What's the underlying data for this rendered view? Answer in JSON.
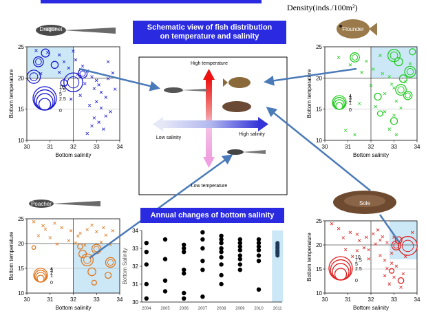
{
  "header": {
    "density_label": "Density(inds./100m²)"
  },
  "banners": {
    "schematic_line1": "Schematic view of fish distribution",
    "schematic_line2": "on temperature and salinity",
    "annual": "Annual changes of bottom salinity"
  },
  "schematic": {
    "high_temperature": "High temperature",
    "low_temperature": "Low temperature",
    "low_salinity": "Low salinity",
    "high_salinity": "High salinity"
  },
  "species": {
    "dragonet": "Dragonet",
    "flounder": "Flounder",
    "poacher": "Poacher",
    "sole": "Sole"
  },
  "colors": {
    "dragonet": "#1a1ad0",
    "flounder": "#22cc22",
    "poacher": "#e07820",
    "sole": "#e02020",
    "highlight": "#cce8f6",
    "arrow": "#4a7ab8"
  },
  "chart_data": [
    {
      "type": "scatter",
      "name": "Dragonet",
      "xlabel": "Bottom salinity",
      "ylabel": "Bottom temperature",
      "xlim": [
        30,
        34
      ],
      "ylim": [
        10,
        25
      ],
      "xticks": [
        "30",
        "31",
        "32",
        "33",
        "34"
      ],
      "yticks": [
        "10",
        "15",
        "20",
        "25"
      ],
      "legend_values": [
        "10",
        "7.5",
        "5",
        "2.5",
        "0"
      ],
      "highlight": {
        "x": [
          30,
          32
        ],
        "y": [
          20,
          25
        ]
      },
      "circles": [
        {
          "x": 32.0,
          "y": 19.3,
          "v": 6.5
        },
        {
          "x": 30.3,
          "y": 20.2,
          "v": 3.2
        },
        {
          "x": 30.5,
          "y": 22.6,
          "v": 1.8
        },
        {
          "x": 30.8,
          "y": 24.0,
          "v": 1.2
        },
        {
          "x": 32.4,
          "y": 20.7,
          "v": 1.5
        },
        {
          "x": 31.6,
          "y": 19.2,
          "v": 0.8
        },
        {
          "x": 31.2,
          "y": 22.1,
          "v": 0.9
        }
      ],
      "crosses": [
        [
          30.4,
          24.4
        ],
        [
          30.9,
          24.1
        ],
        [
          31.4,
          23.7
        ],
        [
          31.6,
          22.6
        ],
        [
          32.1,
          22.9
        ],
        [
          32.4,
          21.9
        ],
        [
          32.6,
          21.1
        ],
        [
          32.2,
          20.6
        ],
        [
          32.8,
          20.2
        ],
        [
          33.0,
          19.6
        ],
        [
          32.5,
          19.1
        ],
        [
          33.1,
          18.9
        ],
        [
          32.9,
          18.3
        ],
        [
          33.2,
          17.7
        ],
        [
          33.4,
          16.9
        ],
        [
          33.0,
          16.2
        ],
        [
          32.7,
          15.6
        ],
        [
          33.2,
          15.2
        ],
        [
          33.6,
          14.6
        ],
        [
          33.4,
          13.9
        ],
        [
          32.9,
          13.6
        ],
        [
          33.1,
          12.9
        ],
        [
          32.8,
          12.3
        ],
        [
          33.3,
          11.8
        ],
        [
          32.6,
          11.1
        ],
        [
          31.9,
          16.6
        ],
        [
          32.3,
          17.2
        ],
        [
          33.5,
          19.9
        ],
        [
          33.7,
          20.8
        ],
        [
          31.4,
          20.9
        ],
        [
          31.8,
          21.6
        ],
        [
          30.6,
          20.7
        ],
        [
          33.8,
          18.2
        ],
        [
          32.0,
          24.3
        ],
        [
          33.5,
          22.6
        ]
      ]
    },
    {
      "type": "scatter",
      "name": "Flounder",
      "xlabel": "Bottom salinity",
      "ylabel": "Bottom temperature",
      "xlim": [
        30,
        34
      ],
      "ylim": [
        10,
        25
      ],
      "xticks": [
        "30",
        "31",
        "32",
        "33",
        "34"
      ],
      "yticks": [
        "10",
        "15",
        "20",
        "25"
      ],
      "legend_values": [
        "4",
        "3",
        "2",
        "1",
        "0"
      ],
      "highlight": {
        "x": [
          32,
          34
        ],
        "y": [
          20,
          25
        ]
      },
      "circles": [
        {
          "x": 33.0,
          "y": 23.6,
          "v": 3.2
        },
        {
          "x": 31.3,
          "y": 23.3,
          "v": 1.8
        },
        {
          "x": 33.2,
          "y": 22.6,
          "v": 1.4
        },
        {
          "x": 33.7,
          "y": 21.0,
          "v": 2.5
        },
        {
          "x": 33.4,
          "y": 19.9,
          "v": 1.2
        },
        {
          "x": 33.3,
          "y": 18.1,
          "v": 2.4
        },
        {
          "x": 33.6,
          "y": 17.2,
          "v": 1.5
        },
        {
          "x": 32.3,
          "y": 17.0,
          "v": 1.0
        },
        {
          "x": 33.0,
          "y": 13.1,
          "v": 1.0
        },
        {
          "x": 32.4,
          "y": 14.3,
          "v": 0.6
        },
        {
          "x": 33.8,
          "y": 24.2,
          "v": 0.8
        }
      ],
      "crosses": [
        [
          30.6,
          23.3
        ],
        [
          31.1,
          22.1
        ],
        [
          31.6,
          20.9
        ],
        [
          32.1,
          21.4
        ],
        [
          32.5,
          20.7
        ],
        [
          32.8,
          20.2
        ],
        [
          32.9,
          19.0
        ],
        [
          33.0,
          18.4
        ],
        [
          32.6,
          17.5
        ],
        [
          33.1,
          16.3
        ],
        [
          32.2,
          15.4
        ],
        [
          32.6,
          14.6
        ],
        [
          33.3,
          15.2
        ],
        [
          33.0,
          14.0
        ],
        [
          32.8,
          11.8
        ],
        [
          33.1,
          10.9
        ],
        [
          31.3,
          10.9
        ],
        [
          30.9,
          11.6
        ],
        [
          32.0,
          18.8
        ],
        [
          31.8,
          22.7
        ],
        [
          32.4,
          23.6
        ],
        [
          33.5,
          19.4
        ],
        [
          31.5,
          15.9
        ],
        [
          33.7,
          22.3
        ]
      ]
    },
    {
      "type": "scatter",
      "name": "Poacher",
      "xlabel": "Bottom salinity",
      "ylabel": "Bottom temperature",
      "xlim": [
        30,
        34
      ],
      "ylim": [
        10,
        25
      ],
      "xticks": [
        "30",
        "31",
        "32",
        "33",
        "34"
      ],
      "yticks": [
        "10",
        "15",
        "20",
        "25"
      ],
      "legend_values": [
        "4",
        "3",
        "2",
        "1",
        "0"
      ],
      "highlight": {
        "x": [
          32,
          34
        ],
        "y": [
          10,
          20
        ]
      },
      "circles": [
        {
          "x": 32.6,
          "y": 16.7,
          "v": 3.0
        },
        {
          "x": 32.4,
          "y": 17.9,
          "v": 1.2
        },
        {
          "x": 33.0,
          "y": 18.9,
          "v": 1.8
        },
        {
          "x": 33.6,
          "y": 16.2,
          "v": 2.0
        },
        {
          "x": 32.8,
          "y": 14.3,
          "v": 1.3
        },
        {
          "x": 32.3,
          "y": 19.4,
          "v": 0.6
        },
        {
          "x": 33.5,
          "y": 13.6,
          "v": 0.8
        },
        {
          "x": 32.9,
          "y": 12.1,
          "v": 0.5
        },
        {
          "x": 30.3,
          "y": 19.2,
          "v": 0.3
        }
      ],
      "crosses": [
        [
          30.3,
          24.4
        ],
        [
          30.7,
          23.6
        ],
        [
          31.2,
          24.1
        ],
        [
          31.5,
          23.2
        ],
        [
          31.9,
          22.6
        ],
        [
          32.3,
          22.1
        ],
        [
          32.6,
          22.8
        ],
        [
          33.0,
          22.4
        ],
        [
          33.4,
          21.7
        ],
        [
          33.7,
          22.6
        ],
        [
          31.0,
          21.2
        ],
        [
          30.5,
          21.6
        ],
        [
          31.8,
          20.6
        ],
        [
          32.1,
          20.1
        ],
        [
          32.5,
          19.7
        ],
        [
          33.2,
          20.3
        ],
        [
          33.6,
          19.8
        ],
        [
          32.2,
          21.5
        ],
        [
          32.8,
          23.7
        ],
        [
          33.3,
          23.2
        ],
        [
          31.3,
          19.9
        ],
        [
          30.8,
          22.9
        ]
      ]
    },
    {
      "type": "scatter",
      "name": "Sole",
      "xlabel": "Bottom salinity",
      "ylabel": "Bottom temperature",
      "xlim": [
        30,
        34
      ],
      "ylim": [
        10,
        25
      ],
      "xticks": [
        "30",
        "31",
        "32",
        "33",
        "34"
      ],
      "yticks": [
        "10",
        "15",
        "20",
        "25"
      ],
      "legend_values": [
        "10",
        "7.5",
        "5",
        "2.5",
        "0"
      ],
      "highlight": {
        "x": [
          32.8,
          34
        ],
        "y": [
          17,
          25
        ]
      },
      "circles": [
        {
          "x": 33.6,
          "y": 19.8,
          "v": 6.5
        },
        {
          "x": 33.1,
          "y": 19.9,
          "v": 1.5
        },
        {
          "x": 33.2,
          "y": 21.0,
          "v": 0.8
        },
        {
          "x": 33.3,
          "y": 12.6,
          "v": 0.6
        },
        {
          "x": 32.9,
          "y": 14.6,
          "v": 0.4
        }
      ],
      "crosses": [
        [
          30.3,
          24.4
        ],
        [
          30.6,
          23.4
        ],
        [
          31.1,
          22.6
        ],
        [
          31.4,
          22.2
        ],
        [
          31.8,
          21.6
        ],
        [
          32.1,
          22.3
        ],
        [
          32.4,
          21.0
        ],
        [
          32.7,
          20.5
        ],
        [
          32.2,
          20.2
        ],
        [
          31.7,
          19.4
        ],
        [
          31.4,
          18.8
        ],
        [
          30.9,
          19.0
        ],
        [
          31.2,
          17.6
        ],
        [
          31.9,
          17.1
        ],
        [
          32.4,
          17.8
        ],
        [
          32.6,
          16.8
        ],
        [
          32.9,
          16.2
        ],
        [
          33.1,
          15.6
        ],
        [
          32.7,
          15.1
        ],
        [
          33.4,
          14.0
        ],
        [
          33.0,
          13.3
        ],
        [
          32.8,
          11.9
        ],
        [
          33.3,
          11.2
        ],
        [
          32.5,
          21.7
        ],
        [
          33.0,
          21.6
        ],
        [
          32.3,
          23.1
        ],
        [
          31.5,
          20.9
        ],
        [
          32.9,
          18.3
        ],
        [
          33.5,
          17.6
        ],
        [
          30.8,
          21.5
        ],
        [
          31.9,
          19.0
        ],
        [
          33.8,
          22.6
        ],
        [
          32.6,
          13.6
        ]
      ]
    },
    {
      "type": "scatter",
      "name": "Annual changes of bottom salinity",
      "xlabel": "",
      "ylabel": "Bottom Salinity",
      "ylim": [
        30,
        34
      ],
      "xticks": [
        "2004",
        "2005",
        "2006",
        "2007",
        "2008",
        "2009",
        "2010",
        "2011"
      ],
      "yticks": [
        "30",
        "31",
        "32",
        "33",
        "34"
      ],
      "highlight_year": "2011",
      "points": [
        {
          "x": "2004",
          "y": [
            33.3,
            32.8,
            32.1,
            31.0,
            30.2
          ]
        },
        {
          "x": "2005",
          "y": [
            33.5,
            32.4,
            31.2,
            30.6
          ]
        },
        {
          "x": "2006",
          "y": [
            33.2,
            33.0,
            32.8,
            31.8,
            31.6,
            30.5,
            30.2
          ]
        },
        {
          "x": "2007",
          "y": [
            33.9,
            33.5,
            33.0,
            32.3,
            31.8,
            30.3
          ]
        },
        {
          "x": "2008",
          "y": [
            33.7,
            33.5,
            33.3,
            33.0,
            32.8,
            32.5,
            32.1,
            31.5,
            31.0
          ]
        },
        {
          "x": "2009",
          "y": [
            33.5,
            33.3,
            33.1,
            32.9,
            32.6,
            32.4,
            32.1,
            31.8
          ]
        },
        {
          "x": "2010",
          "y": [
            33.5,
            33.3,
            33.1,
            32.9,
            32.6,
            32.3,
            30.7
          ]
        },
        {
          "x": "2011",
          "y": [
            33.3,
            33.2,
            33.1,
            33.05,
            33.0,
            32.9,
            32.85,
            32.8,
            32.75,
            32.7,
            32.6
          ]
        }
      ]
    }
  ]
}
